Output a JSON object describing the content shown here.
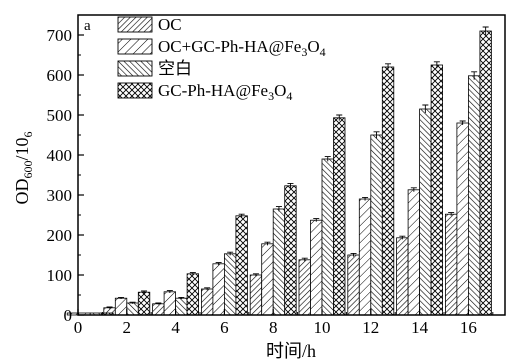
{
  "chart_data": {
    "type": "bar",
    "panel_label": "a",
    "xlabel": "时间/h",
    "ylabel_main": "OD",
    "ylabel_sub": "600",
    "ylabel_tail": "/10",
    "ylabel_tail_sub": "6",
    "xlim": [
      0,
      17.5
    ],
    "ylim": [
      0,
      750
    ],
    "x_ticks": [
      0,
      2,
      4,
      6,
      8,
      10,
      12,
      14,
      16
    ],
    "y_ticks": [
      0,
      100,
      200,
      300,
      400,
      500,
      600,
      700
    ],
    "grid": false,
    "legend_position": "top-left",
    "x": [
      0.5,
      2,
      4,
      6,
      8,
      10,
      12,
      14,
      16
    ],
    "series": [
      {
        "name": "OC",
        "pattern": "diag-dense",
        "values": [
          5,
          18,
          28,
          65,
          100,
          138,
          150,
          193,
          252
        ],
        "errors": [
          0,
          2,
          2,
          3,
          3,
          4,
          4,
          4,
          4
        ]
      },
      {
        "name": "OC+GC-Ph-HA@Fe3O4",
        "pattern": "diag-sparse",
        "values": [
          5,
          42,
          58,
          128,
          178,
          237,
          290,
          313,
          480
        ],
        "errors": [
          0,
          2,
          3,
          3,
          4,
          4,
          4,
          5,
          5
        ]
      },
      {
        "name": "空白",
        "pattern": "anti-diag",
        "values": [
          5,
          30,
          42,
          153,
          265,
          390,
          450,
          515,
          598
        ],
        "errors": [
          0,
          2,
          2,
          4,
          6,
          6,
          8,
          10,
          10
        ]
      },
      {
        "name": "GC-Ph-HA@Fe3O4",
        "pattern": "crosshatch",
        "values": [
          5,
          57,
          103,
          248,
          323,
          493,
          620,
          625,
          710
        ],
        "errors": [
          0,
          3,
          3,
          4,
          6,
          7,
          8,
          8,
          10
        ]
      }
    ],
    "legend": [
      {
        "main": "OC",
        "sub": "",
        "tail": ""
      },
      {
        "main": "OC+GC-Ph-HA@Fe",
        "sub": "3",
        "tail": "O",
        "sub2": "4"
      },
      {
        "main": "空白",
        "sub": "",
        "tail": ""
      },
      {
        "main": "GC-Ph-HA@Fe",
        "sub": "3",
        "tail": "O",
        "sub2": "4"
      }
    ]
  }
}
